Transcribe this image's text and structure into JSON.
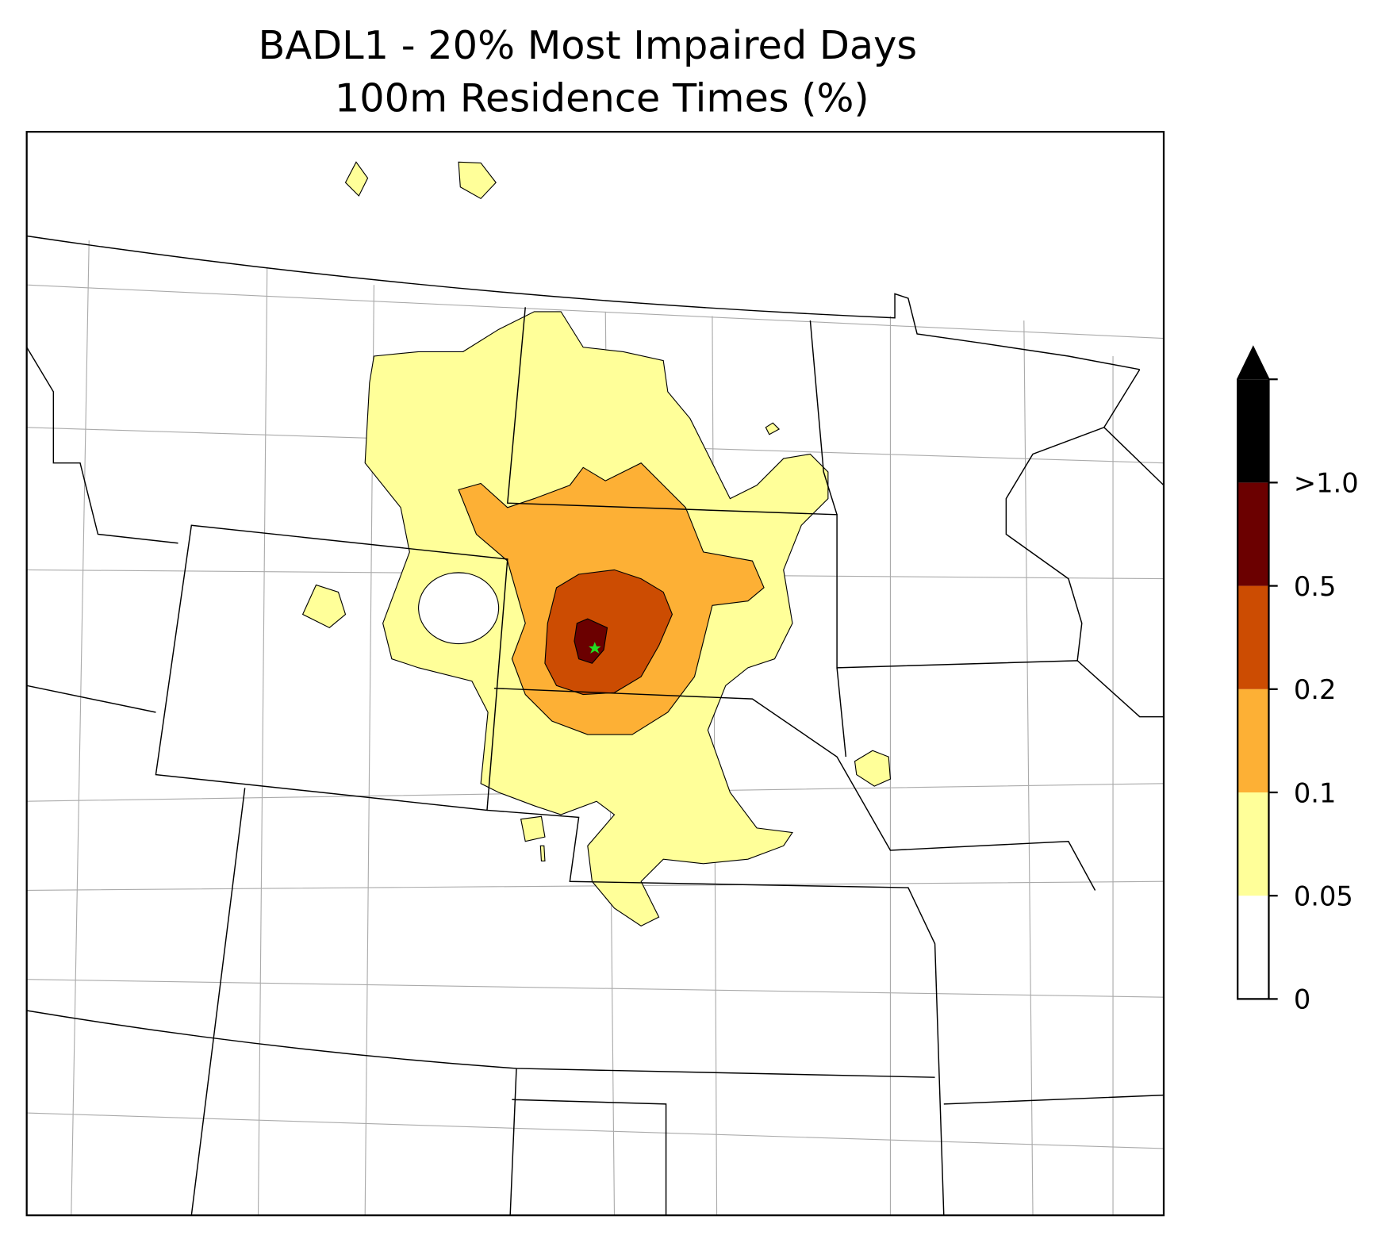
{
  "title": "BADL1 - 20% Most Impaired Days",
  "subtitle": "100m Residence Times (%)",
  "colorbar": {
    "ticks": [
      0,
      0.05,
      0.1,
      0.2,
      0.5,
      {
        "value": 1.0,
        "label": ">1.0"
      }
    ],
    "colors": [
      "#ffffff",
      "#ffff99",
      "#fdb035",
      "#cc4c02",
      "#6b0000",
      "#000000"
    ],
    "extend": "max"
  }
}
